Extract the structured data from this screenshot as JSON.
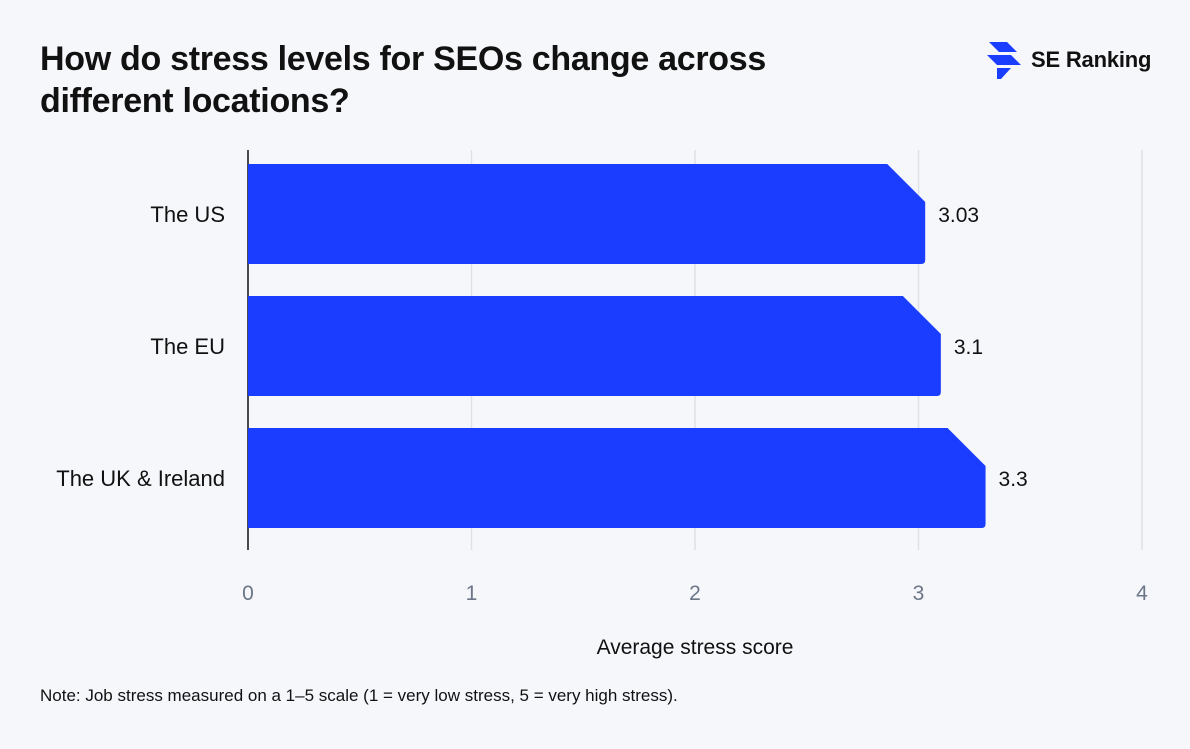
{
  "header": {
    "title": "How do stress levels for SEOs change across different locations?",
    "brand": "SE Ranking",
    "brand_icon": "se-ranking-logo-icon"
  },
  "chart_data": {
    "type": "bar",
    "orientation": "horizontal",
    "categories": [
      "The US",
      "The EU",
      "The UK & Ireland"
    ],
    "values": [
      3.03,
      3.1,
      3.3
    ],
    "value_labels": [
      "3.03",
      "3.1",
      "3.3"
    ],
    "xlabel": "Average stress score",
    "ylabel": "",
    "xlim": [
      0,
      4
    ],
    "xticks": [
      "0",
      "1",
      "2",
      "3",
      "4"
    ],
    "grid": true,
    "bar_color": "#1a3dff",
    "grid_color": "#dfe1e8",
    "tick_color": "#6b7686"
  },
  "note": "Note: Job stress measured on a 1–5 scale (1 = very low stress, 5 = very high stress)."
}
